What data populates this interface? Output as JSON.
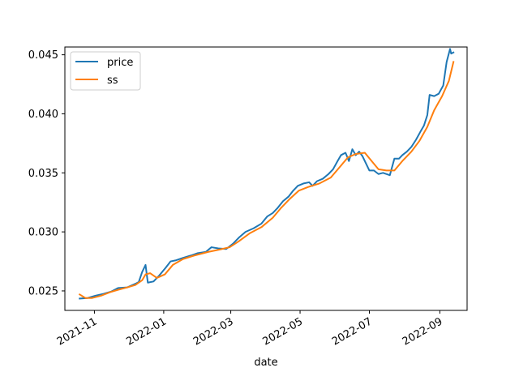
{
  "chart_data": {
    "type": "line",
    "title": "",
    "xlabel": "date",
    "ylabel": "",
    "x_type": "date",
    "xlim": [
      "2021-10-06",
      "2022-09-25"
    ],
    "ylim": [
      0.02335,
      0.04566
    ],
    "x_ticks": [
      {
        "date": "2021-11-01",
        "label": "2021-11"
      },
      {
        "date": "2022-01-01",
        "label": "2022-01"
      },
      {
        "date": "2022-03-01",
        "label": "2022-03"
      },
      {
        "date": "2022-05-01",
        "label": "2022-05"
      },
      {
        "date": "2022-07-01",
        "label": "2022-07"
      },
      {
        "date": "2022-09-01",
        "label": "2022-09"
      }
    ],
    "y_ticks": [
      {
        "value": 0.025,
        "label": "0.025"
      },
      {
        "value": 0.03,
        "label": "0.030"
      },
      {
        "value": 0.035,
        "label": "0.035"
      },
      {
        "value": 0.04,
        "label": "0.040"
      },
      {
        "value": 0.045,
        "label": "0.045"
      }
    ],
    "grid": false,
    "legend": {
      "position": "top-left"
    },
    "series": [
      {
        "name": "price",
        "color": "#1f77b4",
        "points": [
          [
            "2021-10-19",
            0.02435
          ],
          [
            "2021-10-26",
            0.0244
          ],
          [
            "2021-11-02",
            0.0246
          ],
          [
            "2021-11-09",
            0.02475
          ],
          [
            "2021-11-16",
            0.02495
          ],
          [
            "2021-11-22",
            0.02525
          ],
          [
            "2021-11-30",
            0.0253
          ],
          [
            "2021-12-07",
            0.0256
          ],
          [
            "2021-12-10",
            0.02575
          ],
          [
            "2021-12-13",
            0.0266
          ],
          [
            "2021-12-16",
            0.0272
          ],
          [
            "2021-12-18",
            0.0257
          ],
          [
            "2021-12-23",
            0.0258
          ],
          [
            "2021-12-28",
            0.0263
          ],
          [
            "2022-01-03",
            0.027
          ],
          [
            "2022-01-07",
            0.0275
          ],
          [
            "2022-01-12",
            0.0276
          ],
          [
            "2022-01-18",
            0.0278
          ],
          [
            "2022-01-25",
            0.028
          ],
          [
            "2022-01-31",
            0.0282
          ],
          [
            "2022-02-07",
            0.0283
          ],
          [
            "2022-02-12",
            0.0287
          ],
          [
            "2022-02-18",
            0.0286
          ],
          [
            "2022-02-25",
            0.02855
          ],
          [
            "2022-03-03",
            0.029
          ],
          [
            "2022-03-08",
            0.0295
          ],
          [
            "2022-03-14",
            0.03
          ],
          [
            "2022-03-21",
            0.0303
          ],
          [
            "2022-03-28",
            0.0307
          ],
          [
            "2022-04-02",
            0.0313
          ],
          [
            "2022-04-07",
            0.0316
          ],
          [
            "2022-04-11",
            0.032
          ],
          [
            "2022-04-16",
            0.0326
          ],
          [
            "2022-04-21",
            0.033
          ],
          [
            "2022-04-25",
            0.0335
          ],
          [
            "2022-04-29",
            0.0339
          ],
          [
            "2022-05-04",
            0.0341
          ],
          [
            "2022-05-09",
            0.0342
          ],
          [
            "2022-05-12",
            0.0339
          ],
          [
            "2022-05-16",
            0.0343
          ],
          [
            "2022-05-21",
            0.0345
          ],
          [
            "2022-05-26",
            0.0349
          ],
          [
            "2022-05-30",
            0.0353
          ],
          [
            "2022-06-03",
            0.036
          ],
          [
            "2022-06-06",
            0.0365
          ],
          [
            "2022-06-10",
            0.0367
          ],
          [
            "2022-06-13",
            0.036
          ],
          [
            "2022-06-16",
            0.037
          ],
          [
            "2022-06-19",
            0.0365
          ],
          [
            "2022-06-22",
            0.0368
          ],
          [
            "2022-06-25",
            0.0364
          ],
          [
            "2022-06-28",
            0.0358
          ],
          [
            "2022-07-01",
            0.0352
          ],
          [
            "2022-07-05",
            0.0352
          ],
          [
            "2022-07-09",
            0.0349
          ],
          [
            "2022-07-13",
            0.035
          ],
          [
            "2022-07-19",
            0.0348
          ],
          [
            "2022-07-23",
            0.0362
          ],
          [
            "2022-07-27",
            0.0362
          ],
          [
            "2022-07-30",
            0.0365
          ],
          [
            "2022-08-03",
            0.0368
          ],
          [
            "2022-08-07",
            0.0372
          ],
          [
            "2022-08-11",
            0.0378
          ],
          [
            "2022-08-15",
            0.0385
          ],
          [
            "2022-08-18",
            0.039
          ],
          [
            "2022-08-21",
            0.0399
          ],
          [
            "2022-08-23",
            0.0416
          ],
          [
            "2022-08-27",
            0.0415
          ],
          [
            "2022-08-31",
            0.0417
          ],
          [
            "2022-09-04",
            0.0424
          ],
          [
            "2022-09-07",
            0.0444
          ],
          [
            "2022-09-10",
            0.0455
          ],
          [
            "2022-09-11",
            0.0451
          ],
          [
            "2022-09-13",
            0.0452
          ]
        ]
      },
      {
        "name": "ss",
        "color": "#ff7f0e",
        "points": [
          [
            "2021-10-19",
            0.0247
          ],
          [
            "2021-10-24",
            0.0244
          ],
          [
            "2021-10-30",
            0.0244
          ],
          [
            "2021-11-07",
            0.0246
          ],
          [
            "2021-11-15",
            0.0249
          ],
          [
            "2021-11-22",
            0.0251
          ],
          [
            "2021-11-30",
            0.0253
          ],
          [
            "2021-12-07",
            0.0255
          ],
          [
            "2021-12-13",
            0.0259
          ],
          [
            "2021-12-16",
            0.0264
          ],
          [
            "2021-12-20",
            0.0265
          ],
          [
            "2021-12-26",
            0.0261
          ],
          [
            "2022-01-02",
            0.0264
          ],
          [
            "2022-01-09",
            0.0272
          ],
          [
            "2022-01-18",
            0.0277
          ],
          [
            "2022-01-28",
            0.028
          ],
          [
            "2022-02-09",
            0.0283
          ],
          [
            "2022-02-19",
            0.0285
          ],
          [
            "2022-02-28",
            0.0287
          ],
          [
            "2022-03-08",
            0.0292
          ],
          [
            "2022-03-18",
            0.0299
          ],
          [
            "2022-03-28",
            0.0304
          ],
          [
            "2022-04-07",
            0.0312
          ],
          [
            "2022-04-14",
            0.032
          ],
          [
            "2022-04-22",
            0.0328
          ],
          [
            "2022-04-30",
            0.0335
          ],
          [
            "2022-05-08",
            0.0338
          ],
          [
            "2022-05-18",
            0.0341
          ],
          [
            "2022-05-28",
            0.0346
          ],
          [
            "2022-06-05",
            0.0355
          ],
          [
            "2022-06-12",
            0.0363
          ],
          [
            "2022-06-19",
            0.0366
          ],
          [
            "2022-06-27",
            0.0367
          ],
          [
            "2022-07-03",
            0.036
          ],
          [
            "2022-07-09",
            0.0353
          ],
          [
            "2022-07-16",
            0.0352
          ],
          [
            "2022-07-23",
            0.0352
          ],
          [
            "2022-07-30",
            0.036
          ],
          [
            "2022-08-07",
            0.0368
          ],
          [
            "2022-08-14",
            0.0377
          ],
          [
            "2022-08-21",
            0.0389
          ],
          [
            "2022-08-27",
            0.0403
          ],
          [
            "2022-09-03",
            0.0415
          ],
          [
            "2022-09-09",
            0.0428
          ],
          [
            "2022-09-13",
            0.0444
          ]
        ]
      }
    ]
  }
}
